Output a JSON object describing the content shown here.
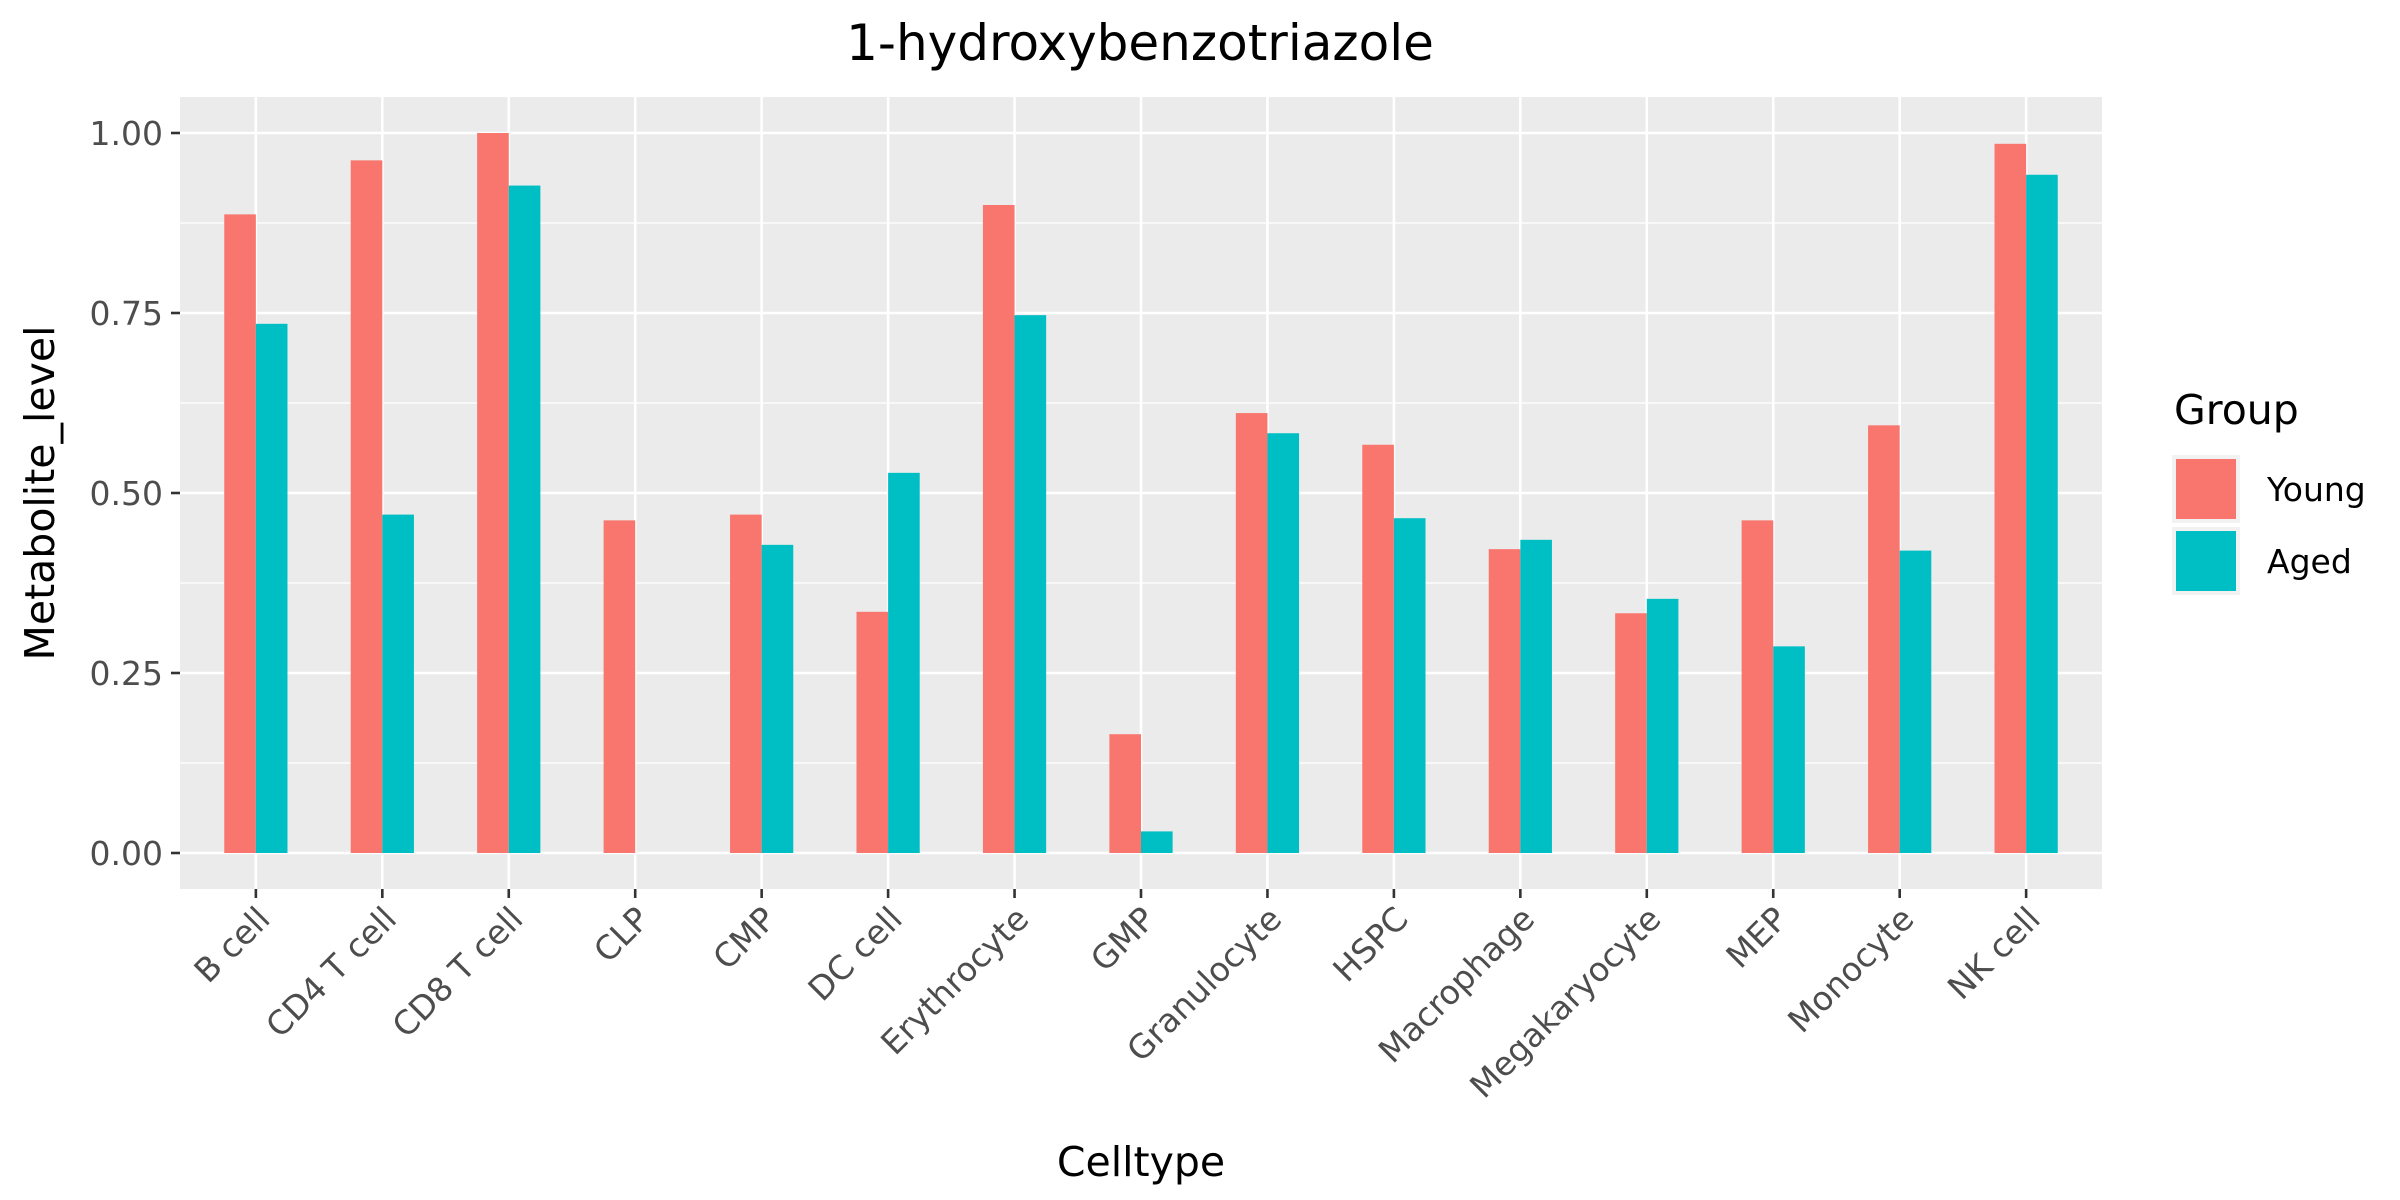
{
  "chart_data": {
    "type": "bar",
    "title": "1-hydroxybenzotriazole",
    "xlabel": "Celltype",
    "ylabel": "Metabolite_level",
    "ylim": [
      -0.05,
      1.05
    ],
    "yticks": [
      0,
      0.25,
      0.5,
      0.75,
      1.0
    ],
    "ytick_labels": [
      "0.00",
      "0.25",
      "0.50",
      "0.75",
      "1.00"
    ],
    "grid": true,
    "legend": {
      "title": "Group",
      "position": "right"
    },
    "categories": [
      "B cell",
      "CD4 T cell",
      "CD8 T cell",
      "CLP",
      "CMP",
      "DC cell",
      "Erythrocyte",
      "GMP",
      "Granulocyte",
      "HSPC",
      "Macrophage",
      "Megakaryocyte",
      "MEP",
      "Monocyte",
      "NK cell"
    ],
    "series": [
      {
        "name": "Young",
        "color": "#F8766D",
        "values": [
          0.887,
          0.962,
          1.0,
          0.462,
          0.47,
          0.335,
          0.9,
          0.165,
          0.611,
          0.567,
          0.422,
          0.333,
          0.462,
          0.594,
          0.985
        ]
      },
      {
        "name": "Aged",
        "color": "#00BFC4",
        "values": [
          0.735,
          0.47,
          0.927,
          null,
          0.428,
          0.528,
          0.747,
          0.03,
          0.583,
          0.465,
          0.435,
          0.353,
          0.287,
          0.42,
          0.942
        ]
      }
    ]
  }
}
